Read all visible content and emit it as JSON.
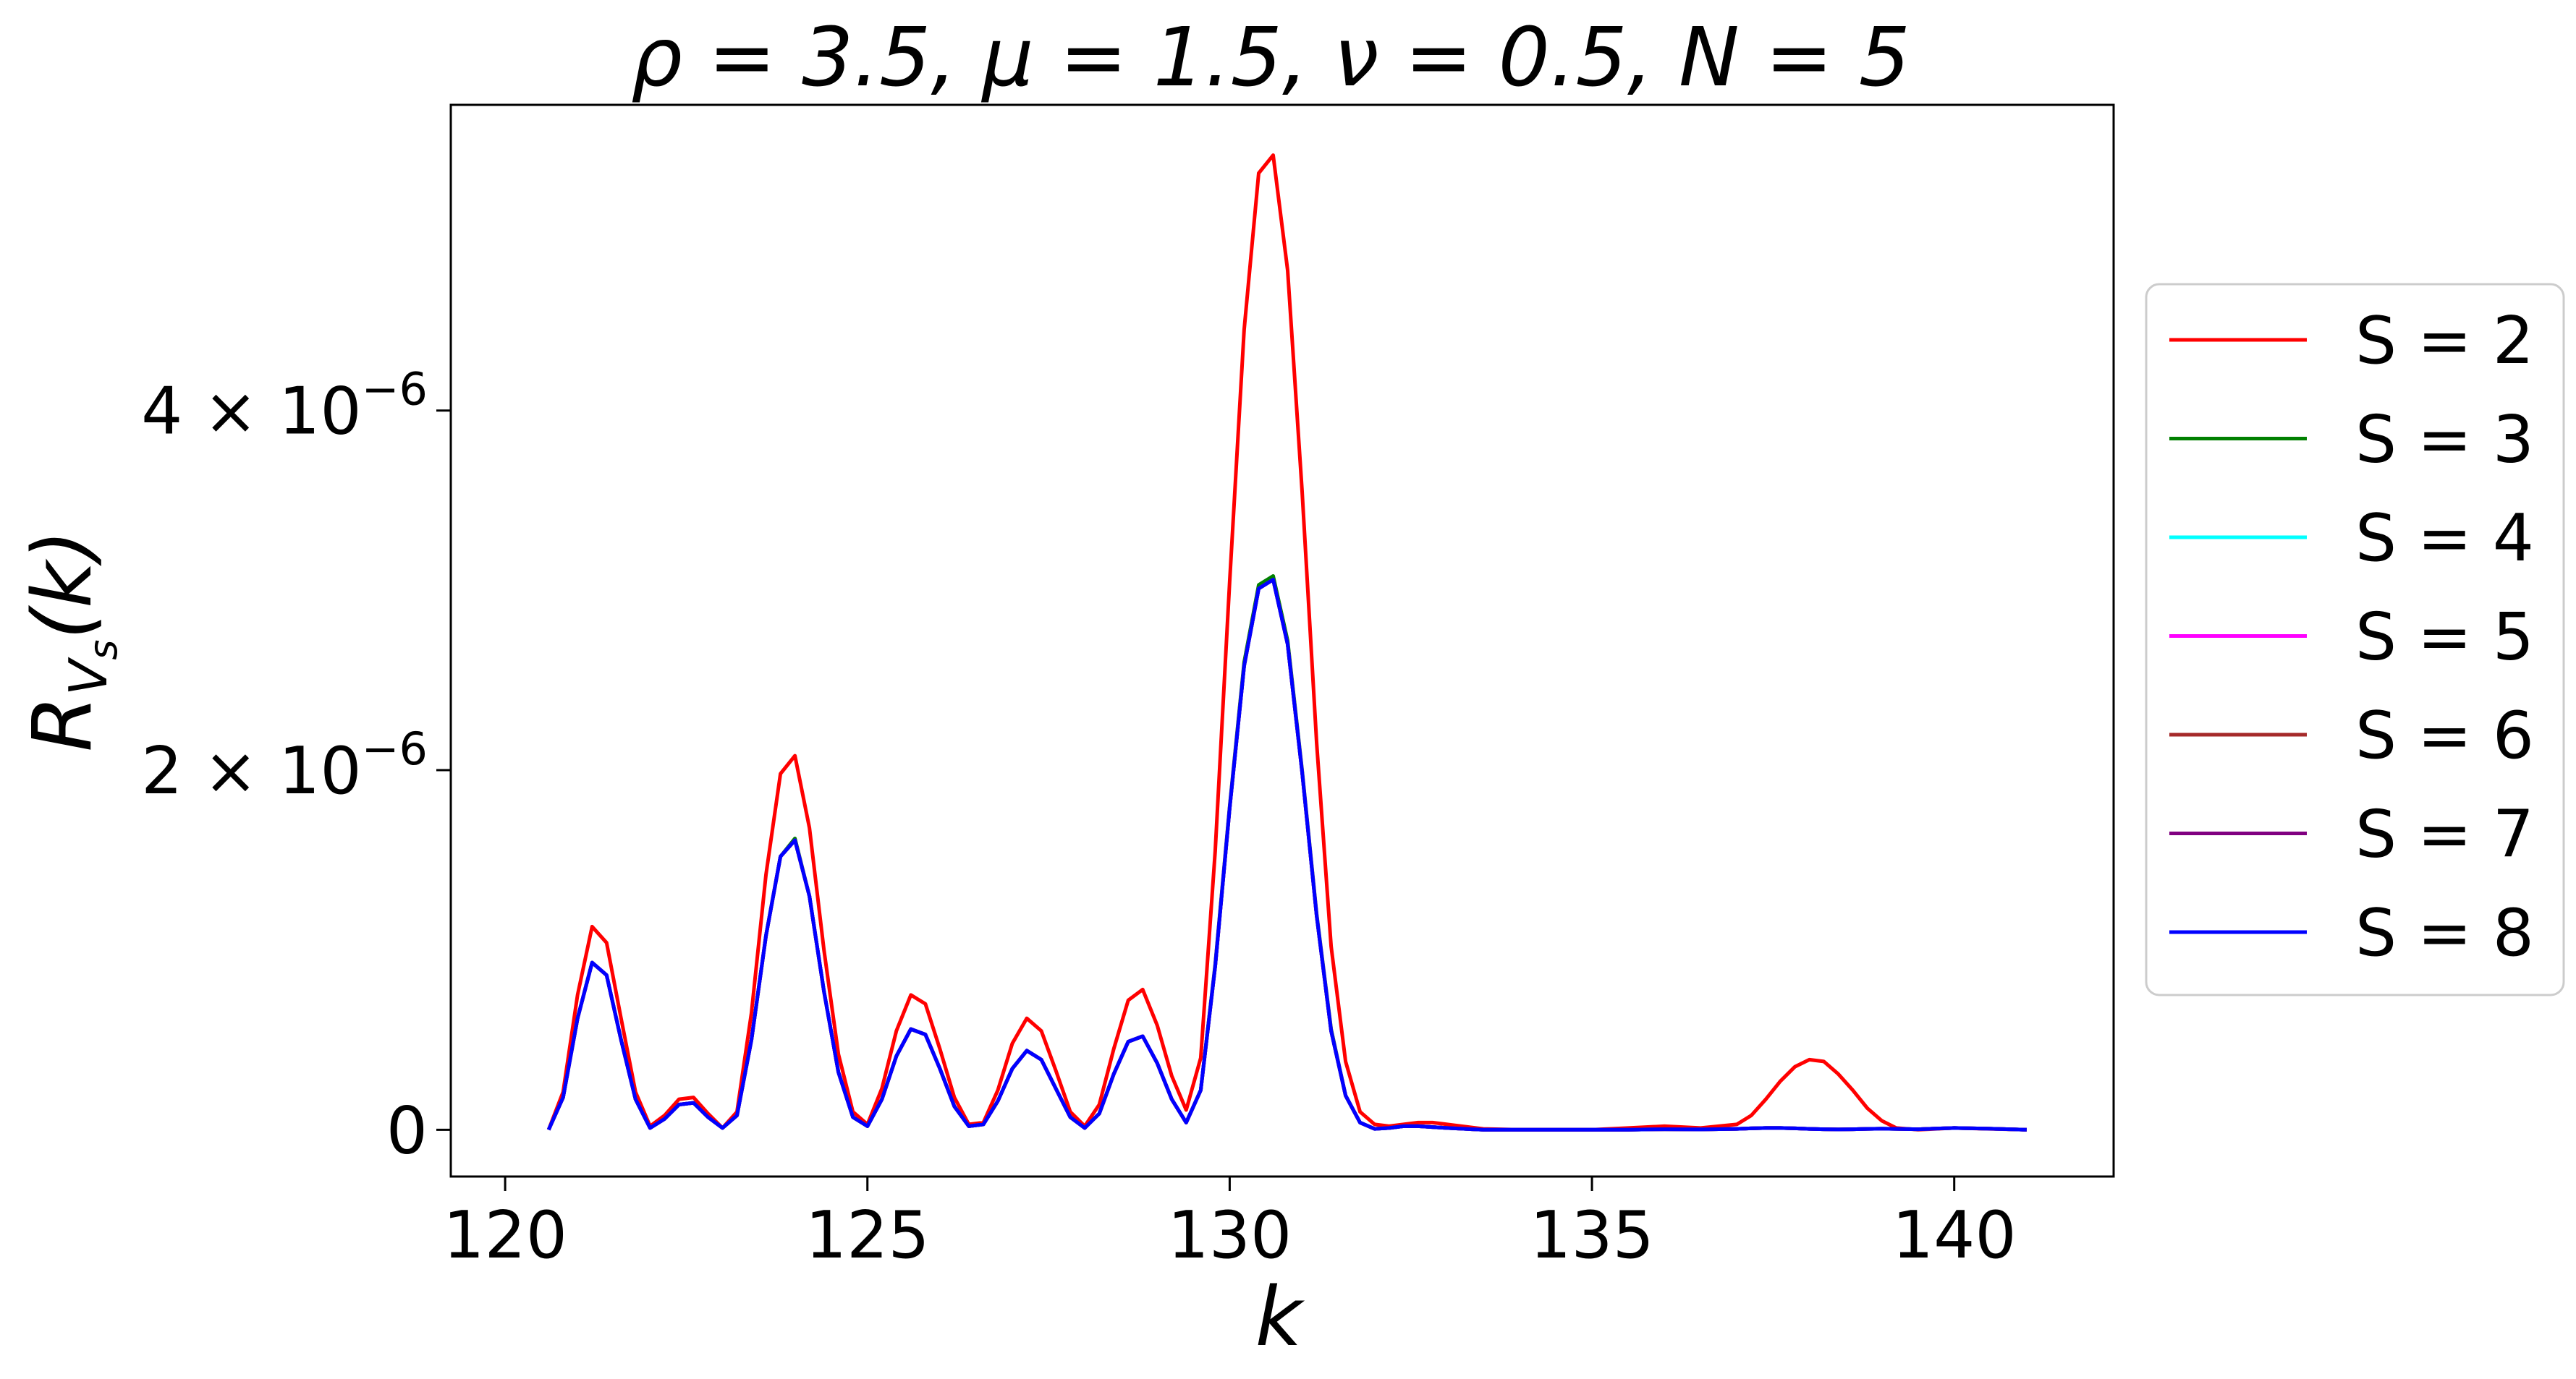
{
  "chart_data": {
    "type": "line",
    "title": "ρ = 3.5, μ = 1.5, ν = 0.5, N = 5",
    "xlabel": "k",
    "ylabel": "R_{V_s}(k)",
    "xlim": [
      119.25,
      142.2
    ],
    "ylim": [
      -2.6e-07,
      5.7e-06
    ],
    "x_ticks": [
      {
        "value": 120,
        "label": "120"
      },
      {
        "value": 125,
        "label": "125"
      },
      {
        "value": 130,
        "label": "130"
      },
      {
        "value": 135,
        "label": "135"
      },
      {
        "value": 140,
        "label": "140"
      }
    ],
    "y_ticks": [
      {
        "value": 0,
        "mant": "0",
        "exp": ""
      },
      {
        "value": 2e-06,
        "mant": "2 × 10",
        "exp": "−6"
      },
      {
        "value": 4e-06,
        "mant": "4 × 10",
        "exp": "−6"
      }
    ],
    "legend_position": "center-right outside",
    "grid": false,
    "x": [
      120.6,
      120.8,
      121.0,
      121.2,
      121.4,
      121.6,
      121.8,
      122.0,
      122.2,
      122.4,
      122.6,
      122.8,
      123.0,
      123.2,
      123.4,
      123.6,
      123.8,
      124.0,
      124.2,
      124.4,
      124.6,
      124.8,
      125.0,
      125.2,
      125.4,
      125.6,
      125.8,
      126.0,
      126.2,
      126.4,
      126.6,
      126.8,
      127.0,
      127.2,
      127.4,
      127.6,
      127.8,
      128.0,
      128.2,
      128.4,
      128.6,
      128.8,
      129.0,
      129.2,
      129.4,
      129.6,
      129.8,
      130.0,
      130.2,
      130.4,
      130.6,
      130.8,
      131.0,
      131.2,
      131.4,
      131.6,
      131.8,
      132.0,
      132.2,
      132.4,
      132.6,
      132.8,
      133.0,
      133.5,
      134.0,
      134.5,
      135.0,
      135.5,
      136.0,
      136.5,
      137.0,
      137.2,
      137.4,
      137.6,
      137.8,
      138.0,
      138.2,
      138.4,
      138.6,
      138.8,
      139.0,
      139.2,
      139.5,
      140.0,
      140.5,
      141.0
    ],
    "series": [
      {
        "name": "S = 2",
        "color": "#ff0000",
        "values": [
          0.0,
          2.1e-07,
          7.5e-07,
          1.13e-06,
          1.04e-06,
          6.2e-07,
          2.1e-07,
          2e-08,
          8e-08,
          1.7e-07,
          1.8e-07,
          9e-08,
          1e-08,
          1e-07,
          6.5e-07,
          1.42e-06,
          1.98e-06,
          2.08e-06,
          1.68e-06,
          1e-06,
          4.2e-07,
          1e-07,
          3e-08,
          2.3e-07,
          5.5e-07,
          7.5e-07,
          7e-07,
          4.5e-07,
          1.8e-07,
          3e-08,
          4e-08,
          2.2e-07,
          4.8e-07,
          6.2e-07,
          5.5e-07,
          3.3e-07,
          1e-07,
          2e-08,
          1.4e-07,
          4.5e-07,
          7.2e-07,
          7.8e-07,
          5.8e-07,
          3e-07,
          1.1e-07,
          4e-07,
          1.55e-06,
          3.05e-06,
          4.45e-06,
          5.32e-06,
          5.42e-06,
          4.78e-06,
          3.55e-06,
          2.15e-06,
          1.02e-06,
          3.8e-07,
          1e-07,
          3e-08,
          2e-08,
          3e-08,
          4e-08,
          4e-08,
          3e-08,
          5e-09,
          0.0,
          0.0,
          0.0,
          1e-08,
          2e-08,
          1e-08,
          3e-08,
          8e-08,
          1.7e-07,
          2.7e-07,
          3.5e-07,
          3.9e-07,
          3.8e-07,
          3.1e-07,
          2.2e-07,
          1.2e-07,
          5e-08,
          1e-08,
          0.0,
          1e-08,
          5e-09,
          0.0
        ]
      },
      {
        "name": "S = 3",
        "color": "#008000",
        "values": [
          0.0,
          1.8e-07,
          6.2e-07,
          9.3e-07,
          8.6e-07,
          5e-07,
          1.7e-07,
          1e-08,
          6e-08,
          1.4e-07,
          1.5e-07,
          7e-08,
          1e-08,
          8e-08,
          5e-07,
          1.08e-06,
          1.52e-06,
          1.62e-06,
          1.3e-06,
          7.7e-07,
          3.2e-07,
          7e-08,
          2e-08,
          1.7e-07,
          4.1e-07,
          5.6e-07,
          5.3e-07,
          3.4e-07,
          1.3e-07,
          2e-08,
          3e-08,
          1.6e-07,
          3.4e-07,
          4.4e-07,
          3.9e-07,
          2.3e-07,
          7e-08,
          1e-08,
          9e-08,
          3.1e-07,
          4.9e-07,
          5.2e-07,
          3.7e-07,
          1.7e-07,
          4e-08,
          2.2e-07,
          9.2e-07,
          1.8e-06,
          2.6e-06,
          3.03e-06,
          3.08e-06,
          2.72e-06,
          2e-06,
          1.2e-06,
          5.6e-07,
          1.9e-07,
          4e-08,
          5e-09,
          1e-08,
          2e-08,
          2e-08,
          1.5e-08,
          1e-08,
          0.0,
          0.0,
          0.0,
          0.0,
          0.0,
          3e-09,
          2e-09,
          5e-09,
          8e-09,
          1e-08,
          1e-08,
          8e-09,
          5e-09,
          3e-09,
          2e-09,
          3e-09,
          5e-09,
          6e-09,
          5e-09,
          3e-09,
          1e-08,
          6e-09,
          0.0
        ]
      },
      {
        "name": "S = 4",
        "color": "#00ffff",
        "values": [
          0.0,
          1.8e-07,
          6.2e-07,
          9.3e-07,
          8.6e-07,
          5e-07,
          1.7e-07,
          1e-08,
          6e-08,
          1.4e-07,
          1.5e-07,
          7e-08,
          1e-08,
          8e-08,
          5e-07,
          1.08e-06,
          1.52e-06,
          1.61e-06,
          1.3e-06,
          7.7e-07,
          3.2e-07,
          7e-08,
          2e-08,
          1.7e-07,
          4.1e-07,
          5.6e-07,
          5.3e-07,
          3.4e-07,
          1.3e-07,
          2e-08,
          3e-08,
          1.6e-07,
          3.4e-07,
          4.4e-07,
          3.9e-07,
          2.3e-07,
          7e-08,
          1e-08,
          9e-08,
          3.1e-07,
          4.9e-07,
          5.2e-07,
          3.7e-07,
          1.7e-07,
          4e-08,
          2.2e-07,
          9.1e-07,
          1.79e-06,
          2.58e-06,
          3.01e-06,
          3.06e-06,
          2.7e-06,
          1.99e-06,
          1.19e-06,
          5.5e-07,
          1.9e-07,
          4e-08,
          5e-09,
          1e-08,
          2e-08,
          2e-08,
          1.5e-08,
          1e-08,
          0.0,
          0.0,
          0.0,
          0.0,
          0.0,
          3e-09,
          2e-09,
          5e-09,
          8e-09,
          1e-08,
          1e-08,
          8e-09,
          5e-09,
          3e-09,
          2e-09,
          3e-09,
          5e-09,
          6e-09,
          5e-09,
          3e-09,
          1e-08,
          6e-09,
          0.0
        ]
      },
      {
        "name": "S = 5",
        "color": "#ff00ff",
        "values": [
          0.0,
          1.8e-07,
          6.2e-07,
          9.3e-07,
          8.6e-07,
          5e-07,
          1.7e-07,
          1e-08,
          6e-08,
          1.4e-07,
          1.5e-07,
          7e-08,
          1e-08,
          8e-08,
          5e-07,
          1.08e-06,
          1.52e-06,
          1.61e-06,
          1.3e-06,
          7.7e-07,
          3.2e-07,
          7e-08,
          2e-08,
          1.7e-07,
          4.1e-07,
          5.6e-07,
          5.3e-07,
          3.4e-07,
          1.3e-07,
          2e-08,
          3e-08,
          1.6e-07,
          3.4e-07,
          4.4e-07,
          3.9e-07,
          2.3e-07,
          7e-08,
          1e-08,
          9e-08,
          3.1e-07,
          4.9e-07,
          5.2e-07,
          3.7e-07,
          1.7e-07,
          4e-08,
          2.2e-07,
          9.1e-07,
          1.79e-06,
          2.58e-06,
          3.01e-06,
          3.06e-06,
          2.7e-06,
          1.99e-06,
          1.19e-06,
          5.5e-07,
          1.9e-07,
          4e-08,
          5e-09,
          1e-08,
          2e-08,
          2e-08,
          1.5e-08,
          1e-08,
          0.0,
          0.0,
          0.0,
          0.0,
          0.0,
          3e-09,
          2e-09,
          5e-09,
          8e-09,
          1e-08,
          1e-08,
          8e-09,
          5e-09,
          3e-09,
          2e-09,
          3e-09,
          5e-09,
          6e-09,
          5e-09,
          3e-09,
          1e-08,
          6e-09,
          0.0
        ]
      },
      {
        "name": "S = 6",
        "color": "#a52a2a",
        "values": [
          0.0,
          1.8e-07,
          6.2e-07,
          9.3e-07,
          8.6e-07,
          5e-07,
          1.7e-07,
          1e-08,
          6e-08,
          1.4e-07,
          1.5e-07,
          7e-08,
          1e-08,
          8e-08,
          5e-07,
          1.08e-06,
          1.52e-06,
          1.61e-06,
          1.3e-06,
          7.7e-07,
          3.2e-07,
          7e-08,
          2e-08,
          1.7e-07,
          4.1e-07,
          5.6e-07,
          5.3e-07,
          3.4e-07,
          1.3e-07,
          2e-08,
          3e-08,
          1.6e-07,
          3.4e-07,
          4.4e-07,
          3.9e-07,
          2.3e-07,
          7e-08,
          1e-08,
          9e-08,
          3.1e-07,
          4.9e-07,
          5.2e-07,
          3.7e-07,
          1.7e-07,
          4e-08,
          2.2e-07,
          9.1e-07,
          1.79e-06,
          2.58e-06,
          3.01e-06,
          3.06e-06,
          2.7e-06,
          1.99e-06,
          1.19e-06,
          5.5e-07,
          1.9e-07,
          4e-08,
          5e-09,
          1e-08,
          2e-08,
          2e-08,
          1.5e-08,
          1e-08,
          0.0,
          0.0,
          0.0,
          0.0,
          0.0,
          3e-09,
          2e-09,
          5e-09,
          8e-09,
          1e-08,
          1e-08,
          8e-09,
          5e-09,
          3e-09,
          2e-09,
          3e-09,
          5e-09,
          6e-09,
          5e-09,
          3e-09,
          1e-08,
          6e-09,
          0.0
        ]
      },
      {
        "name": "S = 7",
        "color": "#800080",
        "values": [
          0.0,
          1.8e-07,
          6.2e-07,
          9.3e-07,
          8.6e-07,
          5e-07,
          1.7e-07,
          1e-08,
          6e-08,
          1.4e-07,
          1.5e-07,
          7e-08,
          1e-08,
          8e-08,
          5e-07,
          1.08e-06,
          1.52e-06,
          1.61e-06,
          1.3e-06,
          7.7e-07,
          3.2e-07,
          7e-08,
          2e-08,
          1.7e-07,
          4.1e-07,
          5.6e-07,
          5.3e-07,
          3.4e-07,
          1.3e-07,
          2e-08,
          3e-08,
          1.6e-07,
          3.4e-07,
          4.4e-07,
          3.9e-07,
          2.3e-07,
          7e-08,
          1e-08,
          9e-08,
          3.1e-07,
          4.9e-07,
          5.2e-07,
          3.7e-07,
          1.7e-07,
          4e-08,
          2.2e-07,
          9.1e-07,
          1.79e-06,
          2.58e-06,
          3.01e-06,
          3.06e-06,
          2.7e-06,
          1.99e-06,
          1.19e-06,
          5.5e-07,
          1.9e-07,
          4e-08,
          5e-09,
          1e-08,
          2e-08,
          2e-08,
          1.5e-08,
          1e-08,
          0.0,
          0.0,
          0.0,
          0.0,
          0.0,
          3e-09,
          2e-09,
          5e-09,
          8e-09,
          1e-08,
          1e-08,
          8e-09,
          5e-09,
          3e-09,
          2e-09,
          3e-09,
          5e-09,
          6e-09,
          5e-09,
          3e-09,
          1e-08,
          6e-09,
          0.0
        ]
      },
      {
        "name": "S = 8",
        "color": "#0000ff",
        "values": [
          0.0,
          1.8e-07,
          6.2e-07,
          9.3e-07,
          8.6e-07,
          5e-07,
          1.7e-07,
          1e-08,
          6e-08,
          1.4e-07,
          1.5e-07,
          7e-08,
          1e-08,
          8e-08,
          5e-07,
          1.08e-06,
          1.52e-06,
          1.61e-06,
          1.3e-06,
          7.7e-07,
          3.2e-07,
          7e-08,
          2e-08,
          1.7e-07,
          4.1e-07,
          5.6e-07,
          5.3e-07,
          3.4e-07,
          1.3e-07,
          2e-08,
          3e-08,
          1.6e-07,
          3.4e-07,
          4.4e-07,
          3.9e-07,
          2.3e-07,
          7e-08,
          1e-08,
          9e-08,
          3.1e-07,
          4.9e-07,
          5.2e-07,
          3.7e-07,
          1.7e-07,
          4e-08,
          2.2e-07,
          9.1e-07,
          1.79e-06,
          2.58e-06,
          3.01e-06,
          3.06e-06,
          2.7e-06,
          1.99e-06,
          1.19e-06,
          5.5e-07,
          1.9e-07,
          4e-08,
          5e-09,
          1e-08,
          2e-08,
          2e-08,
          1.5e-08,
          1e-08,
          0.0,
          0.0,
          0.0,
          0.0,
          0.0,
          3e-09,
          2e-09,
          5e-09,
          8e-09,
          1e-08,
          1e-08,
          8e-09,
          5e-09,
          3e-09,
          2e-09,
          3e-09,
          5e-09,
          6e-09,
          5e-09,
          3e-09,
          1e-08,
          6e-09,
          0.0
        ]
      }
    ]
  }
}
